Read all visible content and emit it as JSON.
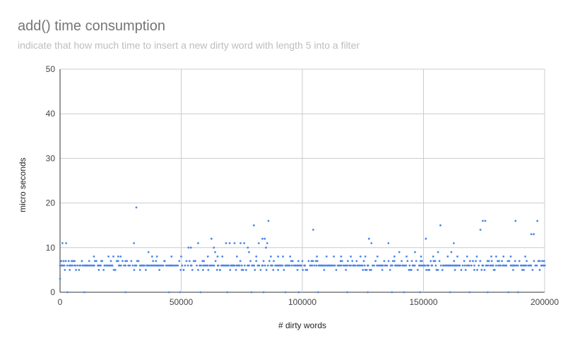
{
  "chart_data": {
    "type": "scatter",
    "title": "add() time consumption",
    "subtitle": "indicate that how much time to insert a new dirty word with length 5 into a filter",
    "xlabel": "# dirty words",
    "ylabel": "micro seconds",
    "xlim": [
      0,
      200000
    ],
    "ylim": [
      0,
      50
    ],
    "x_ticks": [
      0,
      50000,
      100000,
      150000,
      200000
    ],
    "x_tick_labels": [
      "0",
      "50000",
      "100000",
      "150000",
      "200000"
    ],
    "y_ticks": [
      0,
      10,
      20,
      30,
      40,
      50
    ],
    "y_tick_labels": [
      "0",
      "10",
      "20",
      "30",
      "40",
      "50"
    ],
    "grid": true,
    "legend": "none",
    "point_color": "#4a86e8",
    "series": [
      {
        "points": [
          [
            0,
            3
          ],
          [
            1000,
            11
          ],
          [
            2500,
            11
          ],
          [
            500,
            7
          ],
          [
            1500,
            7
          ],
          [
            2000,
            5
          ],
          [
            6000,
            7
          ],
          [
            9000,
            7
          ],
          [
            12000,
            7
          ],
          [
            14000,
            8
          ],
          [
            17000,
            7
          ],
          [
            20000,
            8
          ],
          [
            22000,
            8
          ],
          [
            24000,
            8
          ],
          [
            25000,
            8
          ],
          [
            27000,
            7
          ],
          [
            30500,
            11
          ],
          [
            31500,
            19
          ],
          [
            36500,
            9
          ],
          [
            38000,
            8
          ],
          [
            40000,
            8
          ],
          [
            43000,
            7
          ],
          [
            46000,
            8
          ],
          [
            50000,
            8
          ],
          [
            53000,
            10
          ],
          [
            54000,
            10
          ],
          [
            57000,
            11
          ],
          [
            61000,
            8
          ],
          [
            62500,
            12
          ],
          [
            63500,
            10
          ],
          [
            64000,
            9
          ],
          [
            65000,
            8
          ],
          [
            67000,
            8
          ],
          [
            68500,
            11
          ],
          [
            70000,
            11
          ],
          [
            72000,
            11
          ],
          [
            73000,
            8
          ],
          [
            74500,
            11
          ],
          [
            76000,
            11
          ],
          [
            77500,
            10
          ],
          [
            78000,
            9
          ],
          [
            80000,
            15
          ],
          [
            81000,
            8
          ],
          [
            82000,
            11
          ],
          [
            83500,
            12
          ],
          [
            84500,
            12
          ],
          [
            85000,
            10
          ],
          [
            85500,
            11
          ],
          [
            86000,
            16
          ],
          [
            87000,
            8
          ],
          [
            90000,
            8
          ],
          [
            92000,
            8
          ],
          [
            95000,
            8
          ],
          [
            100000,
            7
          ],
          [
            104500,
            14
          ],
          [
            106000,
            8
          ],
          [
            110000,
            8
          ],
          [
            113000,
            8
          ],
          [
            116000,
            8
          ],
          [
            120000,
            8
          ],
          [
            124000,
            8
          ],
          [
            126000,
            8
          ],
          [
            127500,
            12
          ],
          [
            128500,
            11
          ],
          [
            131000,
            8
          ],
          [
            135500,
            11
          ],
          [
            138000,
            8
          ],
          [
            140000,
            9
          ],
          [
            143000,
            8
          ],
          [
            146500,
            9
          ],
          [
            149000,
            8
          ],
          [
            151000,
            12
          ],
          [
            154000,
            8
          ],
          [
            156000,
            9
          ],
          [
            157000,
            15
          ],
          [
            160000,
            8
          ],
          [
            161500,
            9
          ],
          [
            162500,
            11
          ],
          [
            164000,
            8
          ],
          [
            168000,
            8
          ],
          [
            172000,
            8
          ],
          [
            173500,
            14
          ],
          [
            174500,
            16
          ],
          [
            175500,
            16
          ],
          [
            178000,
            8
          ],
          [
            180000,
            8
          ],
          [
            183000,
            8
          ],
          [
            186000,
            8
          ],
          [
            188000,
            16
          ],
          [
            192000,
            8
          ],
          [
            194500,
            13
          ],
          [
            195500,
            13
          ],
          [
            197000,
            16
          ],
          [
            199000,
            7
          ],
          [
            4000,
            5
          ],
          [
            16000,
            5
          ],
          [
            33000,
            5
          ],
          [
            41000,
            5
          ],
          [
            51000,
            5
          ],
          [
            59000,
            5
          ],
          [
            66000,
            5
          ],
          [
            75000,
            5
          ],
          [
            88000,
            5
          ],
          [
            98000,
            5
          ],
          [
            109000,
            5
          ],
          [
            118000,
            5
          ],
          [
            125000,
            5
          ],
          [
            133000,
            5
          ],
          [
            145000,
            5
          ],
          [
            152000,
            5
          ],
          [
            163000,
            5
          ],
          [
            171000,
            5
          ],
          [
            179000,
            5
          ],
          [
            187000,
            5
          ],
          [
            198000,
            5
          ],
          [
            3000,
            0
          ],
          [
            10000,
            0
          ],
          [
            27000,
            0
          ],
          [
            45000,
            0
          ],
          [
            49500,
            0
          ],
          [
            58000,
            0
          ],
          [
            69000,
            0
          ],
          [
            79000,
            0
          ],
          [
            84000,
            0
          ],
          [
            93000,
            0
          ],
          [
            98500,
            0
          ],
          [
            106500,
            0
          ],
          [
            118500,
            0
          ],
          [
            127000,
            0
          ],
          [
            137000,
            0
          ],
          [
            142000,
            0
          ],
          [
            148500,
            0
          ],
          [
            161000,
            0
          ],
          [
            169000,
            0
          ],
          [
            176500,
            0
          ],
          [
            185000,
            0
          ],
          [
            189000,
            0
          ]
        ],
        "dense_band": {
          "values": [
            5,
            6,
            7
          ],
          "x_range": [
            0,
            200000
          ],
          "step": 600
        }
      }
    ]
  }
}
